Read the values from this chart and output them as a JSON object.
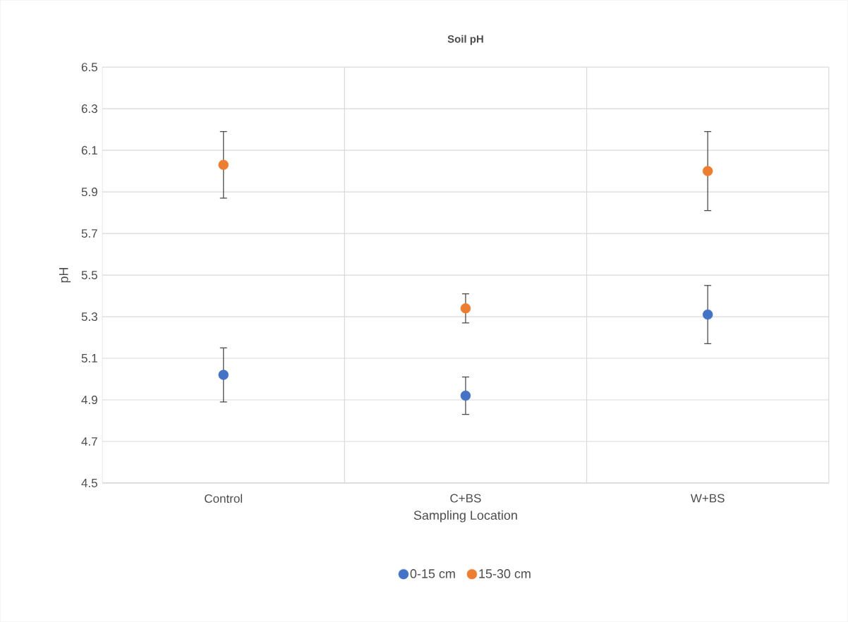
{
  "chart_data": {
    "type": "scatter",
    "title": "Soil pH",
    "xlabel": "Sampling Location",
    "ylabel": "pH",
    "categories": [
      "Control",
      "C+BS",
      "W+BS"
    ],
    "series": [
      {
        "name": "0-15 cm",
        "color": "#4472c4",
        "values": [
          5.02,
          4.92,
          5.31
        ],
        "errors": [
          0.13,
          0.09,
          0.14
        ]
      },
      {
        "name": "15-30 cm",
        "color": "#ed7d31",
        "values": [
          6.03,
          5.34,
          6.0
        ],
        "errors": [
          0.16,
          0.07,
          0.19
        ]
      }
    ],
    "ylim": [
      4.5,
      6.5
    ],
    "yticks": [
      4.5,
      4.7,
      4.9,
      5.1,
      5.3,
      5.5,
      5.7,
      5.9,
      6.1,
      6.3,
      6.5
    ],
    "grid": true,
    "legend": "bottom",
    "marker": "circle"
  }
}
